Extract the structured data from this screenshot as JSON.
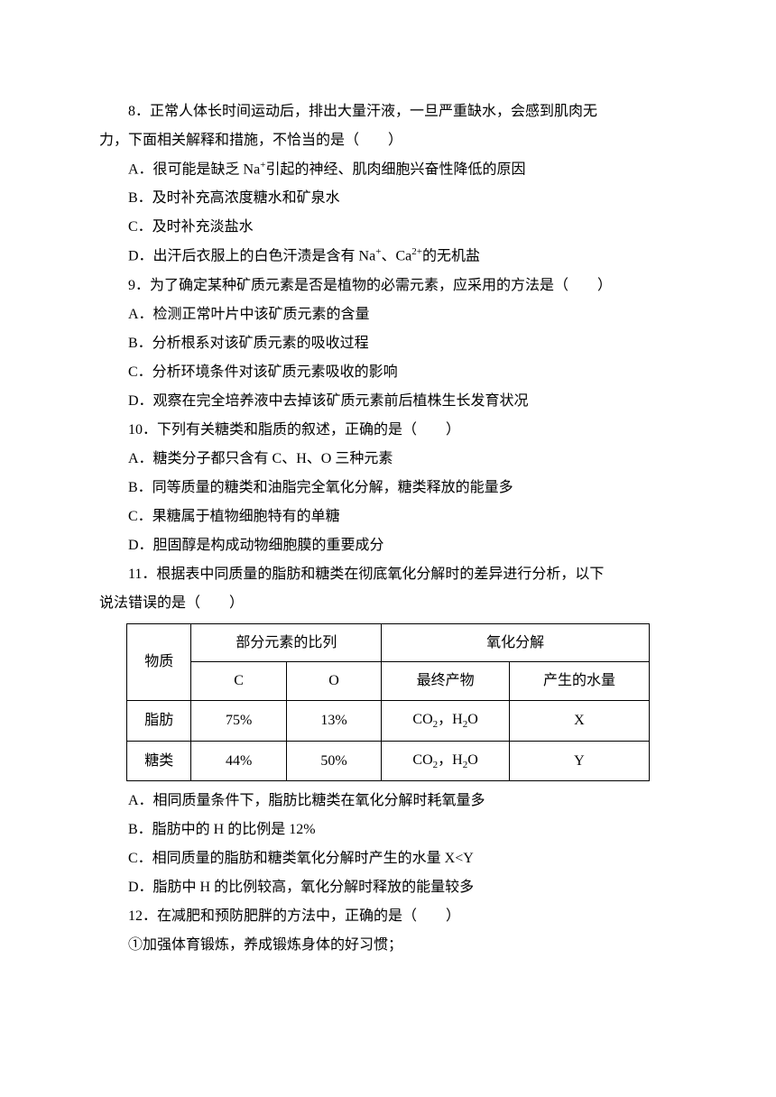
{
  "q8": {
    "stem_pre": "8．正常人体长时间运动后，排出大量汗液，一旦严重缺水，会感到肌肉无",
    "stem_post": "力，下面相关解释和措施，不恰当的是（　　）",
    "optA_pre": "A．很可能是缺乏 Na",
    "optA_post": "引起的神经、肌肉细胞兴奋性降低的原因",
    "optB": "B．及时补充高浓度糖水和矿泉水",
    "optC": "C．及时补充淡盐水",
    "optD_pre": "D．出汗后衣服上的白色汗渍是含有 Na",
    "optD_mid": "、Ca",
    "optD_post": "的无机盐",
    "sup_plus": "+",
    "sup_2plus": "2+"
  },
  "q9": {
    "stem": "9．为了确定某种矿质元素是否是植物的必需元素，应采用的方法是（　　）",
    "optA": "A．检测正常叶片中该矿质元素的含量",
    "optB": "B．分析根系对该矿质元素的吸收过程",
    "optC": "C．分析环境条件对该矿质元素吸收的影响",
    "optD": "D．观察在完全培养液中去掉该矿质元素前后植株生长发育状况"
  },
  "q10": {
    "stem": "10．下列有关糖类和脂质的叙述，正确的是（　　）",
    "optA": "A．糖类分子都只含有 C、H、O 三种元素",
    "optB": "B．同等质量的糖类和油脂完全氧化分解，糖类释放的能量多",
    "optC": "C．果糖属于植物细胞特有的单糖",
    "optD": "D．胆固醇是构成动物细胞膜的重要成分"
  },
  "q11": {
    "stem_pre": "11．根据表中同质量的脂肪和糖类在彻底氧化分解时的差异进行分析，以下",
    "stem_post": "说法错误的是（　　）",
    "table": {
      "header_substance": "物质",
      "header_ratio": "部分元素的比列",
      "header_oxidation": "氧化分解",
      "col_C": "C",
      "col_O": "O",
      "col_product": "最终产物",
      "col_water": "产生的水量",
      "row1_label": "脂肪",
      "row1_C": "75%",
      "row1_O": "13%",
      "row1_product_pre": "CO",
      "row1_product_mid": "，H",
      "row1_product_post": "O",
      "row1_water": "X",
      "row2_label": "糖类",
      "row2_C": "44%",
      "row2_O": "50%",
      "row2_product_pre": "CO",
      "row2_product_mid": "，H",
      "row2_product_post": "O",
      "row2_water": "Y",
      "sub2": "2"
    },
    "optA": "A．相同质量条件下，脂肪比糖类在氧化分解时耗氧量多",
    "optB": "B．脂肪中的 H 的比例是 12%",
    "optC": "C．相同质量的脂肪和糖类氧化分解时产生的水量 X<Y",
    "optD": "D．脂肪中 H 的比例较高，氧化分解时释放的能量较多"
  },
  "q12": {
    "stem": "12．在减肥和预防肥胖的方法中，正确的是（　　）",
    "item1": "①加强体育锻炼，养成锻炼身体的好习惯；"
  }
}
